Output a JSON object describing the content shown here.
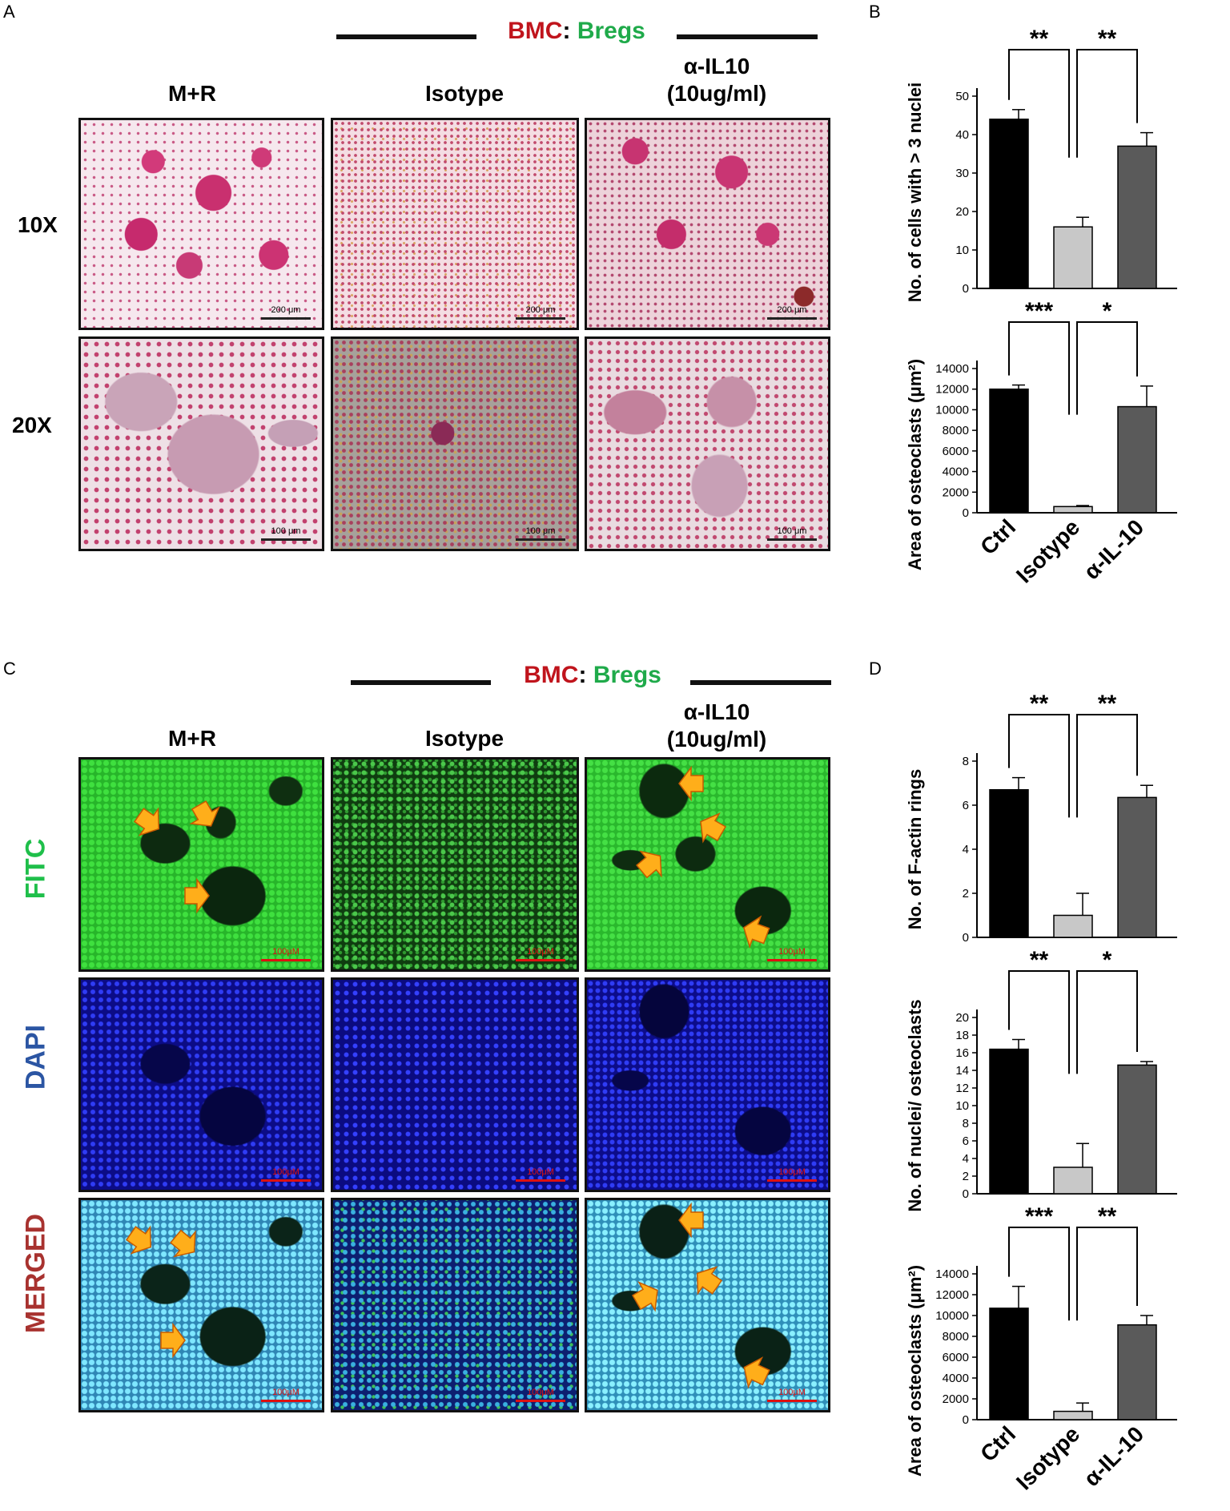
{
  "panels": {
    "A": {
      "letter": "A",
      "header": {
        "bmc": "BMC",
        "sep": ":",
        "bregs": "Bregs"
      },
      "columns": [
        "M+R",
        "Isotype",
        "α-IL10",
        "(10ug/ml)"
      ],
      "rows": [
        "10X",
        "20X"
      ],
      "scale_10x": "200 μm",
      "scale_20x": "100 μm"
    },
    "B": {
      "letter": "B"
    },
    "C": {
      "letter": "C",
      "header": {
        "bmc": "BMC",
        "sep": ":",
        "bregs": "Bregs"
      },
      "columns": [
        "M+R",
        "Isotype",
        "α-IL10",
        "(10ug/ml)"
      ],
      "rows": [
        "FITC",
        "DAPI",
        "MERGED"
      ],
      "scale": "100μM"
    },
    "D": {
      "letter": "D"
    }
  },
  "colors": {
    "bmc": "#c0141c",
    "bregs": "#1faa4a",
    "fitc_label": "#1fbf4a",
    "dapi_label": "#2b55a3",
    "merged_label": "#a8322f",
    "bar_ctrl": "#000000",
    "bar_isotype": "#c8c8c8",
    "bar_anti": "#5a5a5a",
    "arrow": "#ffae1a"
  },
  "chart_data": [
    {
      "type": "bar",
      "panel": "B",
      "categories": [
        "Ctrl",
        "Isotype",
        "α-IL-10"
      ],
      "values": [
        44,
        16,
        37
      ],
      "errors": [
        2.5,
        2.5,
        3.5
      ],
      "ylabel": "No. of cells with > 3 nuclei",
      "ylim": [
        0,
        50
      ],
      "yticks": [
        0,
        10,
        20,
        30,
        40,
        50
      ],
      "show_xlabels": false,
      "significance": [
        {
          "from": 0,
          "to": 1,
          "label": "**"
        },
        {
          "from": 1,
          "to": 2,
          "label": "**"
        }
      ]
    },
    {
      "type": "bar",
      "panel": "B",
      "categories": [
        "Ctrl",
        "Isotype",
        "α-IL-10"
      ],
      "values": [
        12000,
        600,
        10300
      ],
      "errors": [
        400,
        100,
        2000
      ],
      "ylabel": "Area of osteoclasts  (μm²)",
      "ylim": [
        0,
        14000
      ],
      "yticks": [
        0,
        2000,
        4000,
        6000,
        8000,
        10000,
        12000,
        14000
      ],
      "show_xlabels": true,
      "significance": [
        {
          "from": 0,
          "to": 1,
          "label": "***"
        },
        {
          "from": 1,
          "to": 2,
          "label": "*"
        }
      ]
    },
    {
      "type": "bar",
      "panel": "D",
      "categories": [
        "Ctrl",
        "Isotype",
        "α-IL-10"
      ],
      "values": [
        6.7,
        1.0,
        6.35
      ],
      "errors": [
        0.55,
        1.0,
        0.55
      ],
      "ylabel": "No. of F-actin rings",
      "ylim": [
        0,
        8
      ],
      "yticks": [
        0,
        2,
        4,
        6,
        8
      ],
      "show_xlabels": false,
      "significance": [
        {
          "from": 0,
          "to": 1,
          "label": "**"
        },
        {
          "from": 1,
          "to": 2,
          "label": "**"
        }
      ]
    },
    {
      "type": "bar",
      "panel": "D",
      "categories": [
        "Ctrl",
        "Isotype",
        "α-IL-10"
      ],
      "values": [
        16.4,
        3.0,
        14.6
      ],
      "errors": [
        1.1,
        2.7,
        0.4
      ],
      "ylabel": "No. of nuclei/ osteoclasts",
      "ylim": [
        0,
        20
      ],
      "yticks": [
        0,
        2,
        4,
        6,
        8,
        10,
        12,
        14,
        16,
        18,
        20
      ],
      "show_xlabels": false,
      "significance": [
        {
          "from": 0,
          "to": 1,
          "label": "**"
        },
        {
          "from": 1,
          "to": 2,
          "label": "*"
        }
      ]
    },
    {
      "type": "bar",
      "panel": "D",
      "categories": [
        "Ctrl",
        "Isotype",
        "α-IL-10"
      ],
      "values": [
        10700,
        800,
        9100
      ],
      "errors": [
        2100,
        800,
        900
      ],
      "ylabel": "Area of osteoclasts  (μm²)",
      "ylim": [
        0,
        14000
      ],
      "yticks": [
        0,
        2000,
        4000,
        6000,
        8000,
        10000,
        12000,
        14000
      ],
      "show_xlabels": true,
      "significance": [
        {
          "from": 0,
          "to": 1,
          "label": "***"
        },
        {
          "from": 1,
          "to": 2,
          "label": "**"
        }
      ]
    }
  ]
}
